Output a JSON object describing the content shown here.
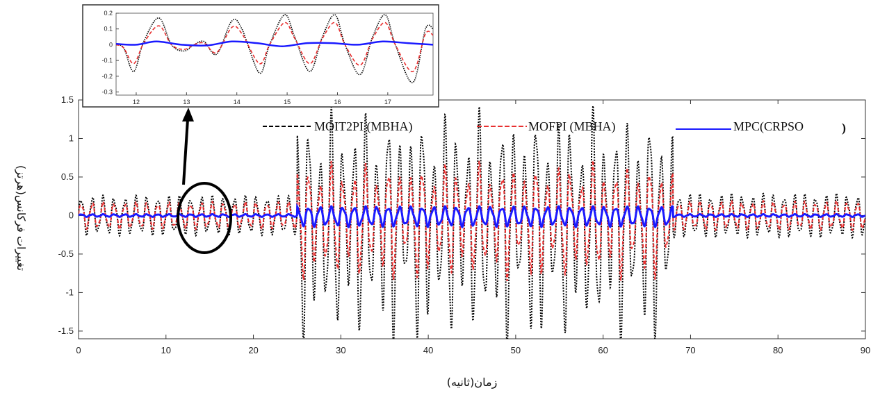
{
  "chart_data": [
    {
      "type": "line",
      "xlabel": "زمان(ثانیه)",
      "ylabel": "تغییرات فرکانس(هرتز)",
      "xlim": [
        0,
        90
      ],
      "ylim": [
        -1.6,
        1.5
      ],
      "xticks": [
        0,
        10,
        20,
        30,
        40,
        50,
        60,
        70,
        80,
        90
      ],
      "xtick_labels": [
        "0",
        "10",
        "20",
        "30",
        "40",
        "50",
        "60",
        "70",
        "80",
        "90"
      ],
      "yticks": [
        -1.5,
        -1,
        -0.5,
        0,
        0.5,
        1,
        1.5
      ],
      "ytick_labels": [
        "-1.5",
        "-1",
        "-0.5",
        "0",
        "0.5",
        "1",
        "1.5"
      ],
      "grid": false,
      "legend": "top-right, horizontal",
      "series": [
        {
          "name": "MOIT2PI (MBHA)",
          "color": "#000000",
          "style": "dotted",
          "segments": [
            {
              "t_start": 0,
              "t_end": 25,
              "period": 1.25,
              "amplitude": 0.22
            },
            {
              "t_start": 25,
              "t_end": 68,
              "period": 1.3,
              "amplitude_range": [
                0.6,
                1.2
              ]
            },
            {
              "t_start": 68,
              "t_end": 90,
              "period": 1.2,
              "amplitude": 0.24
            }
          ],
          "peak_max": 0.92,
          "trough_min": -1.22
        },
        {
          "name": "MOFPI (MBHA)",
          "color": "#e83030",
          "style": "dashed",
          "segments": [
            {
              "t_start": 0,
              "t_end": 25,
              "period": 1.25,
              "amplitude": 0.15
            },
            {
              "t_start": 25,
              "t_end": 68,
              "period": 1.3,
              "amplitude_range": [
                0.35,
                0.6
              ]
            },
            {
              "t_start": 68,
              "t_end": 90,
              "period": 1.2,
              "amplitude": 0.16
            }
          ]
        },
        {
          "name": "MPC(CRPSO",
          "color": "#1a1aff",
          "style": "solid",
          "segments": [
            {
              "t_start": 0,
              "t_end": 25,
              "period": 1.25,
              "amplitude": 0.015
            },
            {
              "t_start": 25,
              "t_end": 68,
              "period": 1.3,
              "amplitude": 0.1
            },
            {
              "t_start": 68,
              "t_end": 90,
              "period": 1.2,
              "amplitude": 0.015
            }
          ]
        }
      ]
    },
    {
      "type": "line",
      "role": "inset zoom",
      "xlim": [
        11.6,
        17.9
      ],
      "ylim": [
        -0.32,
        0.2
      ],
      "xticks": [
        12,
        13,
        14,
        15,
        16,
        17
      ],
      "xtick_labels": [
        "12",
        "13",
        "14",
        "15",
        "16",
        "17"
      ],
      "yticks": [
        0.2,
        0.1,
        0,
        -0.1,
        -0.2,
        -0.3
      ],
      "ytick_labels": [
        "0.2",
        "0.1",
        "0",
        "-0.1",
        "-0.2",
        "-0.3"
      ],
      "series": [
        {
          "name": "MOIT2PI (MBHA)",
          "color": "#000000",
          "style": "dotted",
          "points": [
            [
              11.6,
              0.0
            ],
            [
              11.75,
              -0.02
            ],
            [
              11.95,
              -0.17
            ],
            [
              12.15,
              0.02
            ],
            [
              12.45,
              0.17
            ],
            [
              12.7,
              0.0
            ],
            [
              12.95,
              -0.04
            ],
            [
              13.15,
              0.0
            ],
            [
              13.35,
              0.02
            ],
            [
              13.6,
              -0.06
            ],
            [
              13.9,
              0.15
            ],
            [
              14.1,
              0.1
            ],
            [
              14.45,
              -0.18
            ],
            [
              14.65,
              0.0
            ],
            [
              14.95,
              0.19
            ],
            [
              15.15,
              0.05
            ],
            [
              15.45,
              -0.17
            ],
            [
              15.7,
              0.05
            ],
            [
              15.95,
              0.19
            ],
            [
              16.15,
              0.0
            ],
            [
              16.45,
              -0.19
            ],
            [
              16.7,
              0.05
            ],
            [
              16.95,
              0.19
            ],
            [
              17.15,
              0.0
            ],
            [
              17.5,
              -0.24
            ],
            [
              17.75,
              0.1
            ],
            [
              17.9,
              0.1
            ]
          ]
        },
        {
          "name": "MOFPI (MBHA)",
          "color": "#e83030",
          "style": "dashed",
          "points": [
            [
              11.6,
              0.0
            ],
            [
              11.75,
              -0.02
            ],
            [
              11.95,
              -0.12
            ],
            [
              12.15,
              0.01
            ],
            [
              12.45,
              0.12
            ],
            [
              12.7,
              0.0
            ],
            [
              12.95,
              -0.03
            ],
            [
              13.15,
              0.0
            ],
            [
              13.35,
              0.01
            ],
            [
              13.6,
              -0.05
            ],
            [
              13.9,
              0.11
            ],
            [
              14.1,
              0.07
            ],
            [
              14.45,
              -0.12
            ],
            [
              14.65,
              0.0
            ],
            [
              14.95,
              0.14
            ],
            [
              15.15,
              0.04
            ],
            [
              15.45,
              -0.12
            ],
            [
              15.7,
              0.04
            ],
            [
              15.95,
              0.14
            ],
            [
              16.15,
              0.0
            ],
            [
              16.45,
              -0.13
            ],
            [
              16.7,
              0.04
            ],
            [
              16.95,
              0.14
            ],
            [
              17.15,
              0.0
            ],
            [
              17.5,
              -0.17
            ],
            [
              17.75,
              0.07
            ],
            [
              17.9,
              0.06
            ]
          ]
        },
        {
          "name": "MPC(CRPSO",
          "color": "#1a1aff",
          "style": "solid",
          "points": [
            [
              11.6,
              0.005
            ],
            [
              12.0,
              0.0
            ],
            [
              12.4,
              0.02
            ],
            [
              12.9,
              0.0
            ],
            [
              13.4,
              -0.005
            ],
            [
              13.9,
              0.02
            ],
            [
              14.4,
              0.01
            ],
            [
              14.9,
              -0.01
            ],
            [
              15.4,
              0.01
            ],
            [
              15.9,
              0.01
            ],
            [
              16.4,
              0.0
            ],
            [
              16.9,
              0.02
            ],
            [
              17.4,
              0.01
            ],
            [
              17.9,
              0.0
            ]
          ]
        }
      ]
    }
  ]
}
